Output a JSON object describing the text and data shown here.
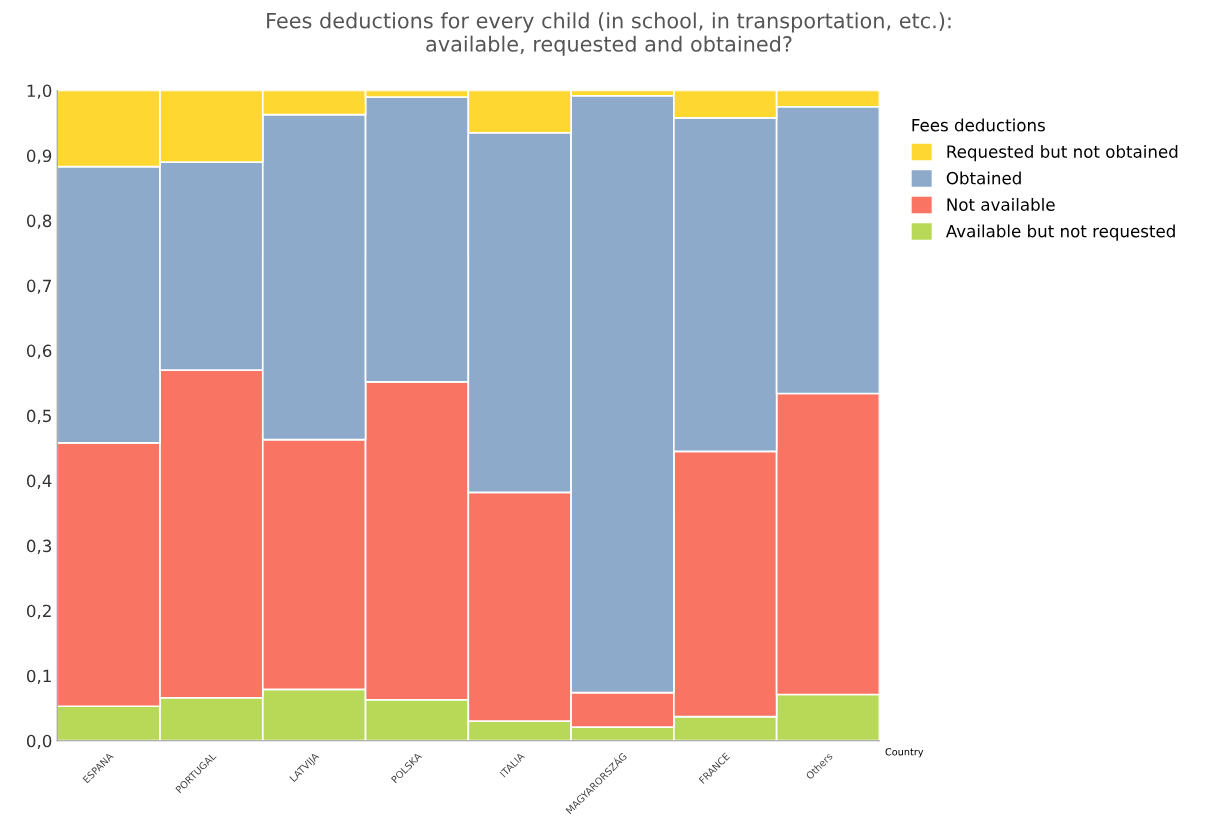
{
  "chart_data": {
    "type": "bar",
    "stacked": true,
    "title": "Fees deductions for every child (in school, in transportation, etc.):\navailable, requested and obtained?",
    "xlabel": "Country",
    "legend_title": "Fees deductions",
    "legend": "top right",
    "grid": false,
    "categories": [
      "ESPANA",
      "PORTUGAL",
      "LATVIJA",
      "POLSKA",
      "ITALIA",
      "MAGYARORSZÁG",
      "FRANCE",
      "Others"
    ],
    "ylim": [
      0,
      1
    ],
    "yticks": [
      {
        "value": 0,
        "label": "0,0"
      },
      {
        "value": 0.1,
        "label": "0,1"
      },
      {
        "value": 0.2,
        "label": "0,2"
      },
      {
        "value": 0.3,
        "label": "0,3"
      },
      {
        "value": 0.4,
        "label": "0,4"
      },
      {
        "value": 0.5,
        "label": "0,5"
      },
      {
        "value": 0.6,
        "label": "0,6"
      },
      {
        "value": 0.7,
        "label": "0,7"
      },
      {
        "value": 0.8,
        "label": "0,8"
      },
      {
        "value": 0.9,
        "label": "0,9"
      },
      {
        "value": 1,
        "label": "1,0"
      }
    ],
    "series": [
      {
        "name": "Available but not requested",
        "color": "#b8d957",
        "values": [
          0.053,
          0.066,
          0.079,
          0.063,
          0.03,
          0.021,
          0.037,
          0.071
        ]
      },
      {
        "name": "Not available",
        "color": "#fa7464",
        "values": [
          0.405,
          0.504,
          0.384,
          0.489,
          0.352,
          0.053,
          0.408,
          0.463
        ]
      },
      {
        "name": "Obtained",
        "color": "#8eaacb",
        "values": [
          0.425,
          0.32,
          0.5,
          0.438,
          0.553,
          0.918,
          0.513,
          0.441
        ]
      },
      {
        "name": "Requested but not obtained",
        "color": "#fed731",
        "values": [
          0.117,
          0.11,
          0.037,
          0.01,
          0.065,
          0.008,
          0.042,
          0.025
        ]
      }
    ]
  }
}
